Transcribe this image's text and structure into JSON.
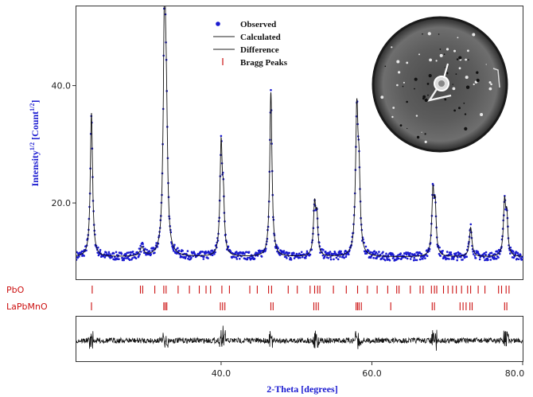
{
  "chart_data": {
    "type": "line",
    "title": "",
    "xlabel": "2-Theta [degrees]",
    "ylabel_main": "Intensity",
    "ylabel_sup": "1/2",
    "ylabel_unit": "[Count",
    "ylabel_unit_sup": "1/2",
    "ylabel_close": "]",
    "xlim": [
      20.8,
      80.0
    ],
    "ylim": [
      7.0,
      53.5
    ],
    "x_ticks": [
      40.0,
      60.0,
      80.0
    ],
    "x_tick_labels": [
      "40.0",
      "60.0",
      "80.0"
    ],
    "y_ticks": [
      20.0,
      40.0
    ],
    "y_tick_labels": [
      "20.0",
      "40.0"
    ],
    "grid": false,
    "legend_position": "top-center",
    "legend": [
      {
        "label": "Observed",
        "marker": "dot",
        "color": "#1a1ad0"
      },
      {
        "label": "Calculated",
        "marker": "line",
        "color": "#222222"
      },
      {
        "label": "Difference",
        "marker": "line",
        "color": "#222222"
      },
      {
        "label": "Bragg Peaks",
        "marker": "tick",
        "color": "#cc1111"
      }
    ],
    "background_level": 10.8,
    "peaks": [
      {
        "x": 22.8,
        "height": 24.5,
        "width": 0.18
      },
      {
        "x": 29.5,
        "height": 1.5,
        "width": 0.3
      },
      {
        "x": 32.5,
        "height": 42.0,
        "width": 0.2
      },
      {
        "x": 32.75,
        "height": 16.0,
        "width": 0.18
      },
      {
        "x": 40.0,
        "height": 18.5,
        "width": 0.18
      },
      {
        "x": 40.3,
        "height": 8.0,
        "width": 0.16
      },
      {
        "x": 46.6,
        "height": 28.0,
        "width": 0.18
      },
      {
        "x": 52.4,
        "height": 8.5,
        "width": 0.18
      },
      {
        "x": 52.7,
        "height": 6.0,
        "width": 0.16
      },
      {
        "x": 58.0,
        "height": 24.0,
        "width": 0.2
      },
      {
        "x": 58.3,
        "height": 11.0,
        "width": 0.18
      },
      {
        "x": 68.1,
        "height": 10.5,
        "width": 0.18
      },
      {
        "x": 68.4,
        "height": 7.5,
        "width": 0.16
      },
      {
        "x": 73.1,
        "height": 5.0,
        "width": 0.2
      },
      {
        "x": 77.6,
        "height": 9.0,
        "width": 0.18
      },
      {
        "x": 77.9,
        "height": 6.0,
        "width": 0.16
      }
    ],
    "phases": [
      {
        "name": "PbO",
        "color": "#cc1111",
        "positions": [
          22.9,
          29.3,
          29.6,
          31.2,
          32.4,
          32.7,
          34.3,
          35.8,
          37.1,
          38.0,
          38.6,
          40.1,
          41.1,
          43.8,
          44.8,
          46.3,
          46.7,
          48.9,
          50.1,
          51.8,
          52.4,
          52.8,
          53.1,
          54.9,
          56.6,
          58.1,
          59.4,
          60.7,
          62.1,
          63.3,
          63.6,
          65.1,
          66.4,
          66.8,
          67.9,
          68.3,
          68.6,
          69.5,
          70.1,
          70.7,
          71.2,
          71.9,
          72.7,
          73.1,
          74.1,
          75.0,
          76.8,
          77.2,
          77.8,
          78.2
        ]
      },
      {
        "name": "LaPbMnO",
        "color": "#cc1111",
        "positions": [
          22.8,
          32.4,
          32.6,
          32.8,
          39.9,
          40.2,
          40.5,
          46.6,
          46.9,
          52.3,
          52.6,
          52.9,
          57.9,
          58.1,
          58.3,
          58.6,
          62.5,
          68.0,
          68.3,
          71.7,
          72.1,
          72.5,
          73.0,
          73.3,
          77.6,
          77.9
        ]
      }
    ]
  }
}
